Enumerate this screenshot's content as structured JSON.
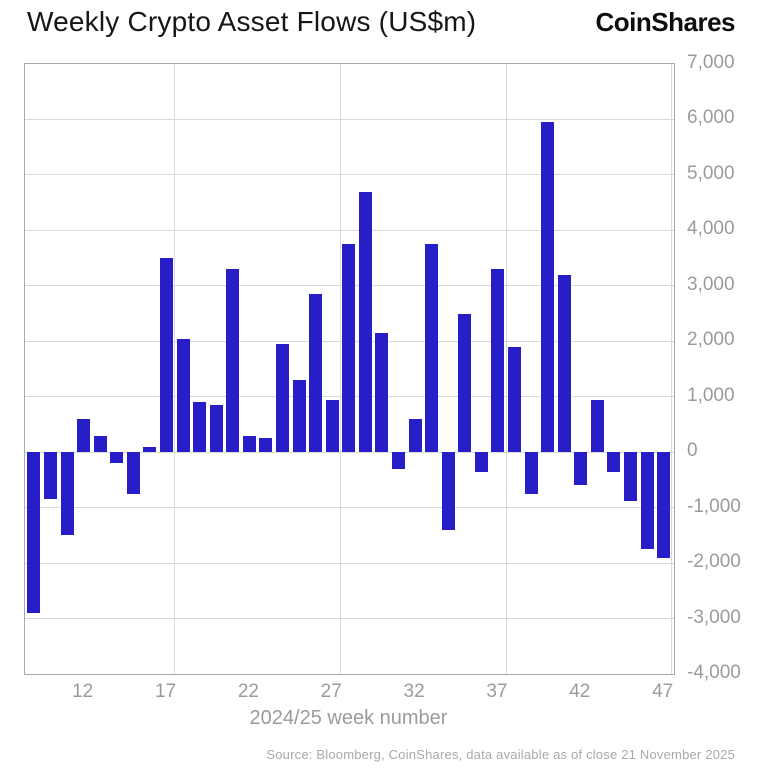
{
  "header": {
    "title": "Weekly Crypto Asset Flows (US$m)",
    "logo": "CoinShares"
  },
  "chart_data": {
    "type": "bar",
    "title": "Weekly Crypto Asset Flows (US$m)",
    "xlabel": "2024/25 week number",
    "x": [
      9,
      10,
      11,
      12,
      13,
      14,
      15,
      16,
      17,
      18,
      19,
      20,
      21,
      22,
      23,
      24,
      25,
      26,
      27,
      28,
      29,
      30,
      31,
      32,
      33,
      34,
      35,
      36,
      37,
      38,
      39,
      40,
      41,
      42,
      43,
      44,
      45,
      46,
      47
    ],
    "values": [
      -2900,
      -850,
      -1500,
      600,
      300,
      -200,
      -750,
      100,
      3500,
      2050,
      900,
      850,
      3300,
      300,
      250,
      1950,
      1300,
      2850,
      950,
      3750,
      4700,
      2150,
      -300,
      600,
      3750,
      -1400,
      2500,
      -350,
      3300,
      1900,
      -750,
      5950,
      3200,
      -600,
      950,
      -350,
      -880,
      -1750,
      -1900
    ],
    "xticks": [
      12,
      17,
      22,
      27,
      32,
      37,
      42,
      47
    ],
    "yticks": [
      7000,
      6000,
      5000,
      4000,
      3000,
      2000,
      1000,
      0,
      -1000,
      -2000,
      -3000,
      -4000
    ],
    "ytick_labels": [
      "7,000",
      "6,000",
      "5,000",
      "4,000",
      "3,000",
      "2,000",
      "1,000",
      "0",
      "-1,000",
      "-2,000",
      "-3,000",
      "-4,000"
    ],
    "ylim": [
      -4000,
      7000
    ],
    "grid": true,
    "legend_position": "none",
    "bar_color": "#281EC8",
    "gridline_color": "#d9d9d9",
    "axis_text_color": "#9b9b9b"
  },
  "footer": {
    "source": "Source: Bloomberg, CoinShares, data available as of close 21 November 2025"
  }
}
